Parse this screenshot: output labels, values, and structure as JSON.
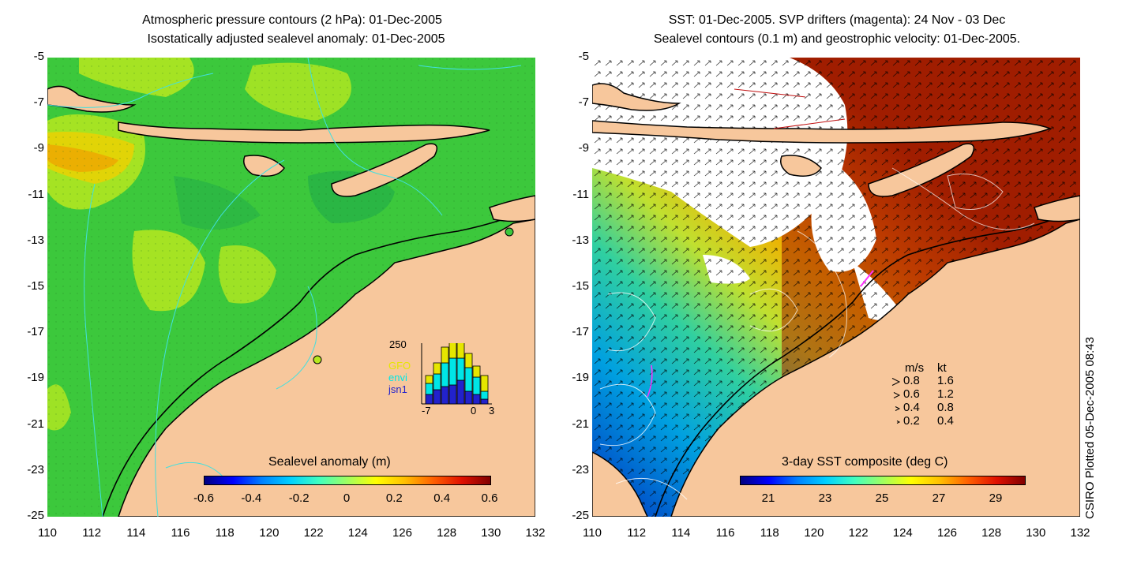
{
  "left_panel": {
    "title_line1": "Atmospheric pressure contours (2 hPa): 01-Dec-2005",
    "title_line2": "Isostatically adjusted sealevel anomaly: 01-Dec-2005",
    "colorbar": {
      "title": "Sealevel anomaly (m)",
      "ticks": [
        "-0.6",
        "-0.4",
        "-0.2",
        "0",
        "0.2",
        "0.4",
        "0.6"
      ],
      "range": [
        -0.6,
        0.6
      ]
    },
    "histogram": {
      "ymax_label": "250",
      "xticks": [
        "-7",
        "0",
        "3"
      ],
      "legend": [
        {
          "name": "GFO",
          "color": "#e6e600"
        },
        {
          "name": "envi",
          "color": "#00e6e6"
        },
        {
          "name": "jsn1",
          "color": "#2222cc"
        }
      ]
    }
  },
  "right_panel": {
    "title_line1": "SST: 01-Dec-2005. SVP drifters (magenta): 24 Nov - 03 Dec",
    "title_line2": "Sealevel contours (0.1 m) and geostrophic velocity: 01-Dec-2005.",
    "colorbar": {
      "title": "3-day SST composite (deg C)",
      "ticks": [
        "21",
        "23",
        "25",
        "27",
        "29"
      ],
      "range": [
        20,
        30
      ]
    },
    "velocity_legend": {
      "header_ms": "m/s",
      "header_kt": "kt",
      "rows": [
        {
          "ms": "0.8",
          "kt": "1.6"
        },
        {
          "ms": "0.6",
          "kt": "1.2"
        },
        {
          "ms": "0.4",
          "kt": "0.8"
        },
        {
          "ms": "0.2",
          "kt": "0.4"
        }
      ]
    }
  },
  "axes": {
    "y_ticks": [
      "-5",
      "-7",
      "-9",
      "-11",
      "-13",
      "-15",
      "-17",
      "-19",
      "-21",
      "-23",
      "-25"
    ],
    "x_ticks": [
      "110",
      "112",
      "114",
      "116",
      "118",
      "120",
      "122",
      "124",
      "126",
      "128",
      "130",
      "132"
    ],
    "lat_range": [
      -25,
      -5
    ],
    "lon_range": [
      110,
      132
    ]
  },
  "credit": "CSIRO Plotted 05-Dec-2005 08:43",
  "colors": {
    "land": "#f7c79c",
    "sla_green": "#3cc83c",
    "sst_warm": "#a01e00",
    "pressure_contour": "#40e0e0"
  }
}
